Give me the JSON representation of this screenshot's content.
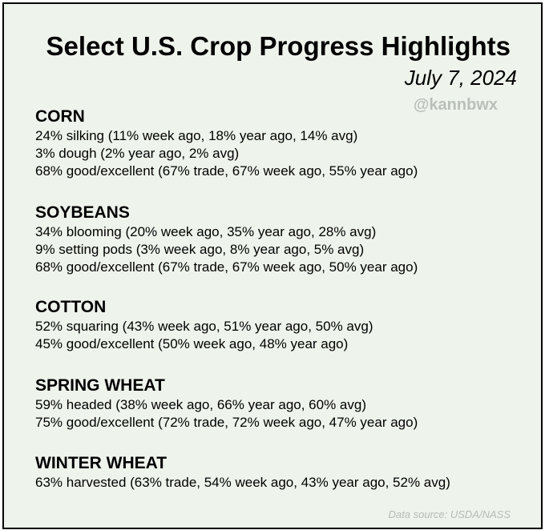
{
  "header": {
    "title": "Select U.S. Crop Progress Highlights",
    "date": "July 7, 2024",
    "handle": "@kannbwx"
  },
  "crops": [
    {
      "name": "CORN",
      "lines": [
        "24% silking (11% week ago, 18% year ago, 14% avg)",
        "3% dough (2% year ago, 2% avg)",
        "68% good/excellent (67% trade, 67% week ago, 55% year ago)"
      ]
    },
    {
      "name": "SOYBEANS",
      "lines": [
        "34% blooming (20% week ago, 35% year ago, 28% avg)",
        "9% setting pods (3% week ago, 8% year ago, 5% avg)",
        "68% good/excellent (67% trade, 67% week ago, 50% year ago)"
      ]
    },
    {
      "name": "COTTON",
      "lines": [
        "52% squaring (43% week ago, 51% year ago, 50% avg)",
        "45% good/excellent (50% week ago, 48% year ago)"
      ]
    },
    {
      "name": "SPRING WHEAT",
      "lines": [
        "59% headed (38% week ago, 66% year ago, 60% avg)",
        "75% good/excellent (72% trade, 72% week ago, 47% year ago)"
      ]
    },
    {
      "name": "WINTER WHEAT",
      "lines": [
        "63% harvested (63% trade, 54% week ago, 43% year ago, 52% avg)"
      ]
    }
  ],
  "footer": {
    "source": "Data source: USDA/NASS"
  },
  "colors": {
    "background": "#eef4ec",
    "border": "#000000",
    "text": "#000000",
    "watermark": "#b9c0b9"
  }
}
